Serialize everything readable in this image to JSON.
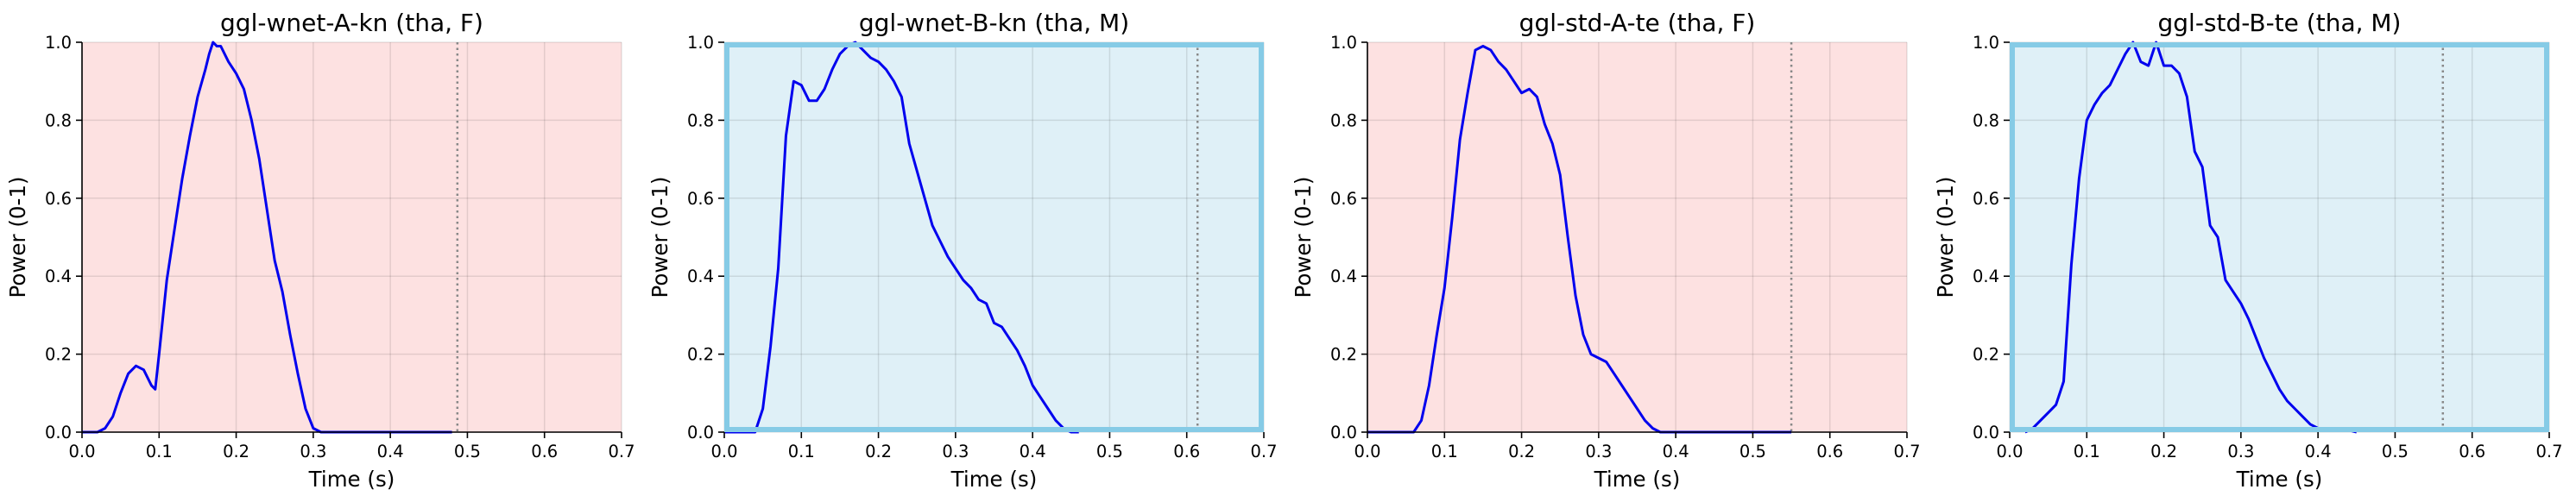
{
  "figure": {
    "x_ticks": [
      "0.0",
      "0.1",
      "0.2",
      "0.3",
      "0.4",
      "0.5",
      "0.6",
      "0.7"
    ],
    "y_ticks": [
      "0.0",
      "0.2",
      "0.4",
      "0.6",
      "0.8",
      "1.0"
    ]
  },
  "chart_data": [
    {
      "type": "line",
      "title": "ggl-wnet-A-kn (tha, F)",
      "xlabel": "Time (s)",
      "ylabel": "Power (0-1)",
      "xlim": [
        0,
        0.7
      ],
      "ylim": [
        0,
        1
      ],
      "grid": true,
      "background_color": "#fde1e1",
      "highlighted": false,
      "line_color": "#0000ee",
      "marker_line": {
        "x": 0.487,
        "style": "dotted",
        "color": "#888888"
      },
      "x": [
        0.0,
        0.02,
        0.03,
        0.04,
        0.05,
        0.06,
        0.07,
        0.08,
        0.09,
        0.095,
        0.1,
        0.11,
        0.12,
        0.13,
        0.14,
        0.15,
        0.16,
        0.165,
        0.17,
        0.175,
        0.18,
        0.19,
        0.2,
        0.21,
        0.22,
        0.23,
        0.24,
        0.25,
        0.26,
        0.27,
        0.28,
        0.29,
        0.3,
        0.31,
        0.32,
        0.33,
        0.35,
        0.4,
        0.45,
        0.48
      ],
      "y": [
        0.0,
        0.0,
        0.01,
        0.04,
        0.1,
        0.15,
        0.17,
        0.16,
        0.12,
        0.11,
        0.2,
        0.39,
        0.52,
        0.65,
        0.76,
        0.86,
        0.93,
        0.97,
        1.0,
        0.99,
        0.99,
        0.95,
        0.92,
        0.88,
        0.8,
        0.7,
        0.57,
        0.44,
        0.36,
        0.25,
        0.15,
        0.06,
        0.01,
        0.0,
        0.0,
        0.0,
        0.0,
        0.0,
        0.0,
        0.0
      ]
    },
    {
      "type": "line",
      "title": "ggl-wnet-B-kn (tha, M)",
      "xlabel": "Time (s)",
      "ylabel": "Power (0-1)",
      "xlim": [
        0,
        0.7
      ],
      "ylim": [
        0,
        1
      ],
      "grid": true,
      "background_color": "#dff0f7",
      "highlighted": true,
      "border_color": "#86cbe6",
      "line_color": "#0000ee",
      "marker_line": {
        "x": 0.614,
        "style": "dotted",
        "color": "#888888"
      },
      "x": [
        0.0,
        0.04,
        0.05,
        0.06,
        0.07,
        0.08,
        0.09,
        0.1,
        0.11,
        0.12,
        0.13,
        0.14,
        0.15,
        0.16,
        0.17,
        0.18,
        0.19,
        0.2,
        0.21,
        0.22,
        0.23,
        0.24,
        0.25,
        0.26,
        0.27,
        0.28,
        0.29,
        0.3,
        0.31,
        0.32,
        0.33,
        0.34,
        0.35,
        0.36,
        0.37,
        0.38,
        0.39,
        0.4,
        0.41,
        0.42,
        0.43,
        0.44,
        0.45,
        0.46
      ],
      "y": [
        0.0,
        0.0,
        0.06,
        0.22,
        0.42,
        0.76,
        0.9,
        0.89,
        0.85,
        0.85,
        0.88,
        0.93,
        0.97,
        0.99,
        1.0,
        0.98,
        0.96,
        0.95,
        0.93,
        0.9,
        0.86,
        0.74,
        0.67,
        0.6,
        0.53,
        0.49,
        0.45,
        0.42,
        0.39,
        0.37,
        0.34,
        0.33,
        0.28,
        0.27,
        0.24,
        0.21,
        0.17,
        0.12,
        0.09,
        0.06,
        0.03,
        0.01,
        0.0,
        0.0
      ]
    },
    {
      "type": "line",
      "title": "ggl-std-A-te (tha, F)",
      "xlabel": "Time (s)",
      "ylabel": "Power (0-1)",
      "xlim": [
        0,
        0.7
      ],
      "ylim": [
        0,
        1
      ],
      "grid": true,
      "background_color": "#fde1e1",
      "highlighted": false,
      "line_color": "#0000ee",
      "marker_line": {
        "x": 0.55,
        "style": "dotted",
        "color": "#888888"
      },
      "x": [
        0.0,
        0.06,
        0.07,
        0.08,
        0.09,
        0.1,
        0.11,
        0.12,
        0.13,
        0.14,
        0.15,
        0.16,
        0.17,
        0.18,
        0.19,
        0.2,
        0.21,
        0.22,
        0.23,
        0.24,
        0.25,
        0.26,
        0.27,
        0.28,
        0.29,
        0.3,
        0.31,
        0.32,
        0.33,
        0.34,
        0.35,
        0.36,
        0.37,
        0.38,
        0.39,
        0.4,
        0.45,
        0.5,
        0.55
      ],
      "y": [
        0.0,
        0.0,
        0.03,
        0.12,
        0.25,
        0.37,
        0.55,
        0.75,
        0.87,
        0.98,
        0.99,
        0.98,
        0.95,
        0.93,
        0.9,
        0.87,
        0.88,
        0.86,
        0.79,
        0.74,
        0.66,
        0.5,
        0.35,
        0.25,
        0.2,
        0.19,
        0.18,
        0.15,
        0.12,
        0.09,
        0.06,
        0.03,
        0.01,
        0.0,
        0.0,
        0.0,
        0.0,
        0.0,
        0.0
      ]
    },
    {
      "type": "line",
      "title": "ggl-std-B-te (tha, M)",
      "xlabel": "Time (s)",
      "ylabel": "Power (0-1)",
      "xlim": [
        0,
        0.7
      ],
      "ylim": [
        0,
        1
      ],
      "grid": true,
      "background_color": "#dff0f7",
      "highlighted": true,
      "border_color": "#86cbe6",
      "line_color": "#0000ee",
      "marker_line": {
        "x": 0.562,
        "style": "dotted",
        "color": "#888888"
      },
      "x": [
        0.02,
        0.03,
        0.04,
        0.05,
        0.06,
        0.07,
        0.08,
        0.09,
        0.1,
        0.11,
        0.12,
        0.13,
        0.14,
        0.15,
        0.16,
        0.17,
        0.18,
        0.19,
        0.2,
        0.21,
        0.22,
        0.23,
        0.24,
        0.25,
        0.26,
        0.27,
        0.28,
        0.29,
        0.3,
        0.31,
        0.32,
        0.33,
        0.34,
        0.35,
        0.36,
        0.37,
        0.38,
        0.39,
        0.4,
        0.41,
        0.42,
        0.43,
        0.45
      ],
      "y": [
        0.0,
        0.01,
        0.03,
        0.05,
        0.07,
        0.13,
        0.43,
        0.65,
        0.8,
        0.84,
        0.87,
        0.89,
        0.93,
        0.97,
        1.0,
        0.95,
        0.94,
        1.0,
        0.94,
        0.94,
        0.92,
        0.86,
        0.72,
        0.68,
        0.53,
        0.5,
        0.39,
        0.36,
        0.33,
        0.29,
        0.24,
        0.19,
        0.15,
        0.11,
        0.08,
        0.06,
        0.04,
        0.02,
        0.01,
        0.01,
        0.01,
        0.01,
        0.0
      ]
    }
  ]
}
